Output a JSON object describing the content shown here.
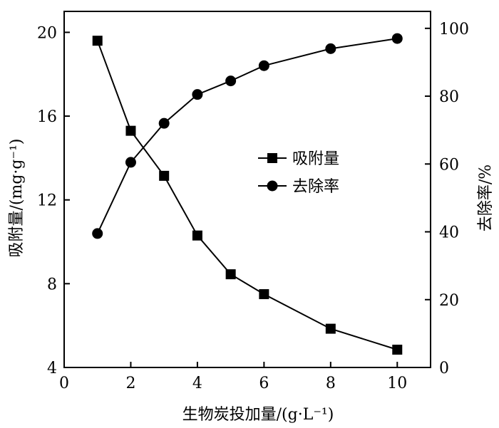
{
  "chart_data": {
    "type": "line",
    "xlabel": "生物炭投加量/(g·L⁻¹)",
    "ylabel_left": "吸附量/(mg·g⁻¹)",
    "ylabel_right": "去除率/%",
    "xlim": [
      0,
      11
    ],
    "ylim_left": [
      4,
      21
    ],
    "ylim_right": [
      0,
      105
    ],
    "x_ticks": [
      "0",
      "2",
      "4",
      "6",
      "8",
      "10"
    ],
    "y_left_ticks": [
      "4",
      "8",
      "12",
      "16",
      "20"
    ],
    "y_right_ticks": [
      "0",
      "20",
      "40",
      "60",
      "80",
      "100"
    ],
    "legend_position": "center-right",
    "grid": false,
    "series": [
      {
        "name": "吸附量",
        "axis": "left",
        "marker": "square",
        "x": [
          1,
          2,
          3,
          4,
          5,
          6,
          8,
          10
        ],
        "y": [
          19.6,
          15.3,
          13.15,
          10.3,
          8.45,
          7.5,
          5.85,
          4.85
        ]
      },
      {
        "name": "去除率",
        "axis": "right",
        "marker": "circle",
        "x": [
          1,
          2,
          3,
          4,
          5,
          6,
          8,
          10
        ],
        "y": [
          39.5,
          60.5,
          72,
          80.5,
          84.5,
          89,
          94,
          97
        ]
      }
    ]
  }
}
